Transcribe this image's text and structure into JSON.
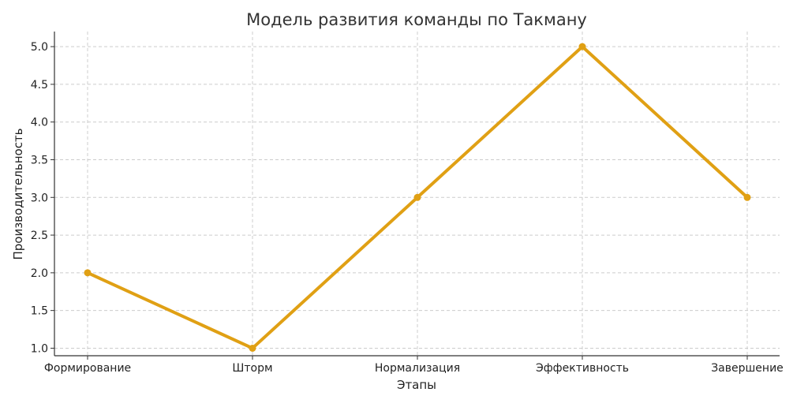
{
  "chart_data": {
    "type": "line",
    "title": "Модель развития команды по Такману",
    "xlabel": "Этапы",
    "ylabel": "Производительность",
    "categories": [
      "Формирование",
      "Шторм",
      "Нормализация",
      "Эффективность",
      "Завершение"
    ],
    "series": [
      {
        "values": [
          2,
          1,
          3,
          5,
          3
        ],
        "color": "#E0A014"
      }
    ],
    "ylim": [
      0.9,
      5.2
    ],
    "yticks": [
      "1.0",
      "1.5",
      "2.0",
      "2.5",
      "3.0",
      "3.5",
      "4.0",
      "4.5",
      "5.0"
    ],
    "grid": true,
    "legend": "none"
  }
}
